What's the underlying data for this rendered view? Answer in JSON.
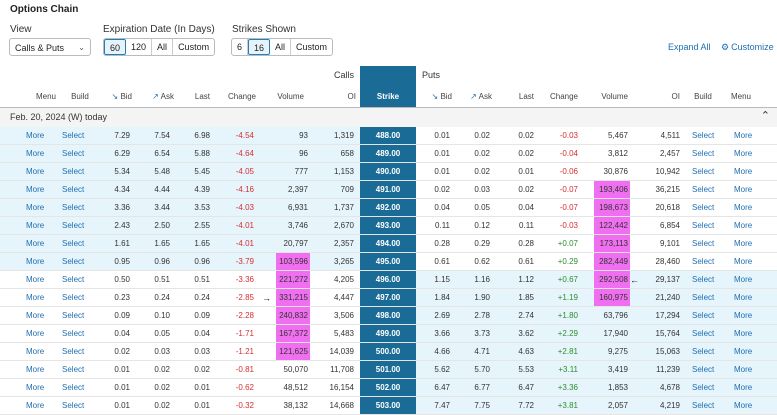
{
  "title": "Options Chain",
  "controls": {
    "view_label": "View",
    "view_value": "Calls & Puts",
    "expiration_label": "Expiration Date (In Days)",
    "expiration_options": [
      "60",
      "120",
      "All",
      "Custom"
    ],
    "expiration_active": 0,
    "strikes_label": "Strikes Shown",
    "strikes_options": [
      "6",
      "16",
      "All",
      "Custom"
    ],
    "strikes_active": 1,
    "expand_all": "Expand All",
    "customize": "Customize"
  },
  "groups": {
    "calls": "Calls",
    "puts": "Puts"
  },
  "headers": {
    "calls": [
      "Menu",
      "Build",
      "Bid",
      "Ask",
      "Last",
      "Change",
      "Volume",
      "OI"
    ],
    "strike": "Strike",
    "puts": [
      "Bid",
      "Ask",
      "Last",
      "Change",
      "Volume",
      "OI",
      "Build",
      "Menu"
    ]
  },
  "expiration_row": "Feb. 20, 2024 (W) today",
  "action_labels": {
    "more": "More",
    "select": "Select"
  },
  "colors": {
    "strike_bg": "#1a6c97",
    "itm_bg": "#e6f4fb",
    "highlight": "#f06ff0",
    "negative": "#d63030",
    "positive": "#2d8f2d"
  },
  "rows": [
    {
      "c_bid": "7.29",
      "c_ask": "7.54",
      "c_last": "6.98",
      "c_chg": "-4.54",
      "c_vol": "93",
      "c_oi": "1,319",
      "strike": "488.00",
      "p_bid": "0.01",
      "p_ask": "0.02",
      "p_last": "0.02",
      "p_chg": "-0.03",
      "p_vol": "5,467",
      "p_oi": "4,511"
    },
    {
      "c_bid": "6.29",
      "c_ask": "6.54",
      "c_last": "5.88",
      "c_chg": "-4.64",
      "c_vol": "96",
      "c_oi": "658",
      "strike": "489.00",
      "p_bid": "0.01",
      "p_ask": "0.02",
      "p_last": "0.02",
      "p_chg": "-0.04",
      "p_vol": "3,812",
      "p_oi": "2,457"
    },
    {
      "c_bid": "5.34",
      "c_ask": "5.48",
      "c_last": "5.45",
      "c_chg": "-4.05",
      "c_vol": "777",
      "c_oi": "1,153",
      "strike": "490.00",
      "p_bid": "0.01",
      "p_ask": "0.02",
      "p_last": "0.01",
      "p_chg": "-0.06",
      "p_vol": "30,876",
      "p_oi": "10,942"
    },
    {
      "c_bid": "4.34",
      "c_ask": "4.44",
      "c_last": "4.39",
      "c_chg": "-4.16",
      "c_vol": "2,397",
      "c_oi": "709",
      "strike": "491.00",
      "p_bid": "0.02",
      "p_ask": "0.03",
      "p_last": "0.02",
      "p_chg": "-0.07",
      "p_vol": "193,406",
      "p_oi": "36,215"
    },
    {
      "c_bid": "3.36",
      "c_ask": "3.44",
      "c_last": "3.53",
      "c_chg": "-4.03",
      "c_vol": "6,931",
      "c_oi": "1,737",
      "strike": "492.00",
      "p_bid": "0.04",
      "p_ask": "0.05",
      "p_last": "0.04",
      "p_chg": "-0.07",
      "p_vol": "198,673",
      "p_oi": "20,618"
    },
    {
      "c_bid": "2.43",
      "c_ask": "2.50",
      "c_last": "2.55",
      "c_chg": "-4.01",
      "c_vol": "3,746",
      "c_oi": "2,670",
      "strike": "493.00",
      "p_bid": "0.11",
      "p_ask": "0.12",
      "p_last": "0.11",
      "p_chg": "-0.03",
      "p_vol": "122,442",
      "p_oi": "6,854"
    },
    {
      "c_bid": "1.61",
      "c_ask": "1.65",
      "c_last": "1.65",
      "c_chg": "-4.01",
      "c_vol": "20,797",
      "c_oi": "2,357",
      "strike": "494.00",
      "p_bid": "0.28",
      "p_ask": "0.29",
      "p_last": "0.28",
      "p_chg": "+0.07",
      "p_vol": "173,113",
      "p_oi": "9,101"
    },
    {
      "c_bid": "0.95",
      "c_ask": "0.96",
      "c_last": "0.96",
      "c_chg": "-3.79",
      "c_vol": "103,596",
      "c_oi": "3,265",
      "strike": "495.00",
      "p_bid": "0.61",
      "p_ask": "0.62",
      "p_last": "0.61",
      "p_chg": "+0.29",
      "p_vol": "282,449",
      "p_oi": "28,460"
    },
    {
      "c_bid": "0.50",
      "c_ask": "0.51",
      "c_last": "0.51",
      "c_chg": "-3.36",
      "c_vol": "221,272",
      "c_oi": "4,205",
      "strike": "496.00",
      "p_bid": "1.15",
      "p_ask": "1.16",
      "p_last": "1.12",
      "p_chg": "+0.67",
      "p_vol": "292,508",
      "p_oi": "29,137"
    },
    {
      "c_bid": "0.23",
      "c_ask": "0.24",
      "c_last": "0.24",
      "c_chg": "-2.85",
      "c_vol": "331,215",
      "c_oi": "4,447",
      "strike": "497.00",
      "p_bid": "1.84",
      "p_ask": "1.90",
      "p_last": "1.85",
      "p_chg": "+1.19",
      "p_vol": "160,975",
      "p_oi": "21,240"
    },
    {
      "c_bid": "0.09",
      "c_ask": "0.10",
      "c_last": "0.09",
      "c_chg": "-2.28",
      "c_vol": "240,832",
      "c_oi": "3,506",
      "strike": "498.00",
      "p_bid": "2.69",
      "p_ask": "2.78",
      "p_last": "2.74",
      "p_chg": "+1.80",
      "p_vol": "63,796",
      "p_oi": "17,294"
    },
    {
      "c_bid": "0.04",
      "c_ask": "0.05",
      "c_last": "0.04",
      "c_chg": "-1.71",
      "c_vol": "167,372",
      "c_oi": "5,483",
      "strike": "499.00",
      "p_bid": "3.66",
      "p_ask": "3.73",
      "p_last": "3.62",
      "p_chg": "+2.29",
      "p_vol": "17,940",
      "p_oi": "15,764"
    },
    {
      "c_bid": "0.02",
      "c_ask": "0.03",
      "c_last": "0.03",
      "c_chg": "-1.21",
      "c_vol": "121,625",
      "c_oi": "14,039",
      "strike": "500.00",
      "p_bid": "4.66",
      "p_ask": "4.71",
      "p_last": "4.63",
      "p_chg": "+2.81",
      "p_vol": "9,275",
      "p_oi": "15,063"
    },
    {
      "c_bid": "0.01",
      "c_ask": "0.02",
      "c_last": "0.02",
      "c_chg": "-0.81",
      "c_vol": "50,070",
      "c_oi": "11,708",
      "strike": "501.00",
      "p_bid": "5.62",
      "p_ask": "5.70",
      "p_last": "5.53",
      "p_chg": "+3.11",
      "p_vol": "3,419",
      "p_oi": "11,239"
    },
    {
      "c_bid": "0.01",
      "c_ask": "0.02",
      "c_last": "0.01",
      "c_chg": "-0.62",
      "c_vol": "48,512",
      "c_oi": "16,154",
      "strike": "502.00",
      "p_bid": "6.47",
      "p_ask": "6.77",
      "p_last": "6.47",
      "p_chg": "+3.36",
      "p_vol": "1,853",
      "p_oi": "4,678"
    },
    {
      "c_bid": "0.01",
      "c_ask": "0.02",
      "c_last": "0.01",
      "c_chg": "-0.32",
      "c_vol": "38,132",
      "c_oi": "14,668",
      "strike": "503.00",
      "p_bid": "7.47",
      "p_ask": "7.75",
      "p_last": "7.72",
      "p_chg": "+3.81",
      "p_vol": "2,057",
      "p_oi": "4,219"
    }
  ],
  "call_itm_rows": 8,
  "highlight_call_volume_rows": [
    7,
    8,
    9,
    10,
    11,
    12
  ],
  "highlight_put_volume_rows": [
    3,
    4,
    5,
    6,
    7,
    8,
    9
  ],
  "arrows": [
    {
      "side": "call",
      "row": 9
    },
    {
      "side": "put",
      "row": 8
    }
  ]
}
